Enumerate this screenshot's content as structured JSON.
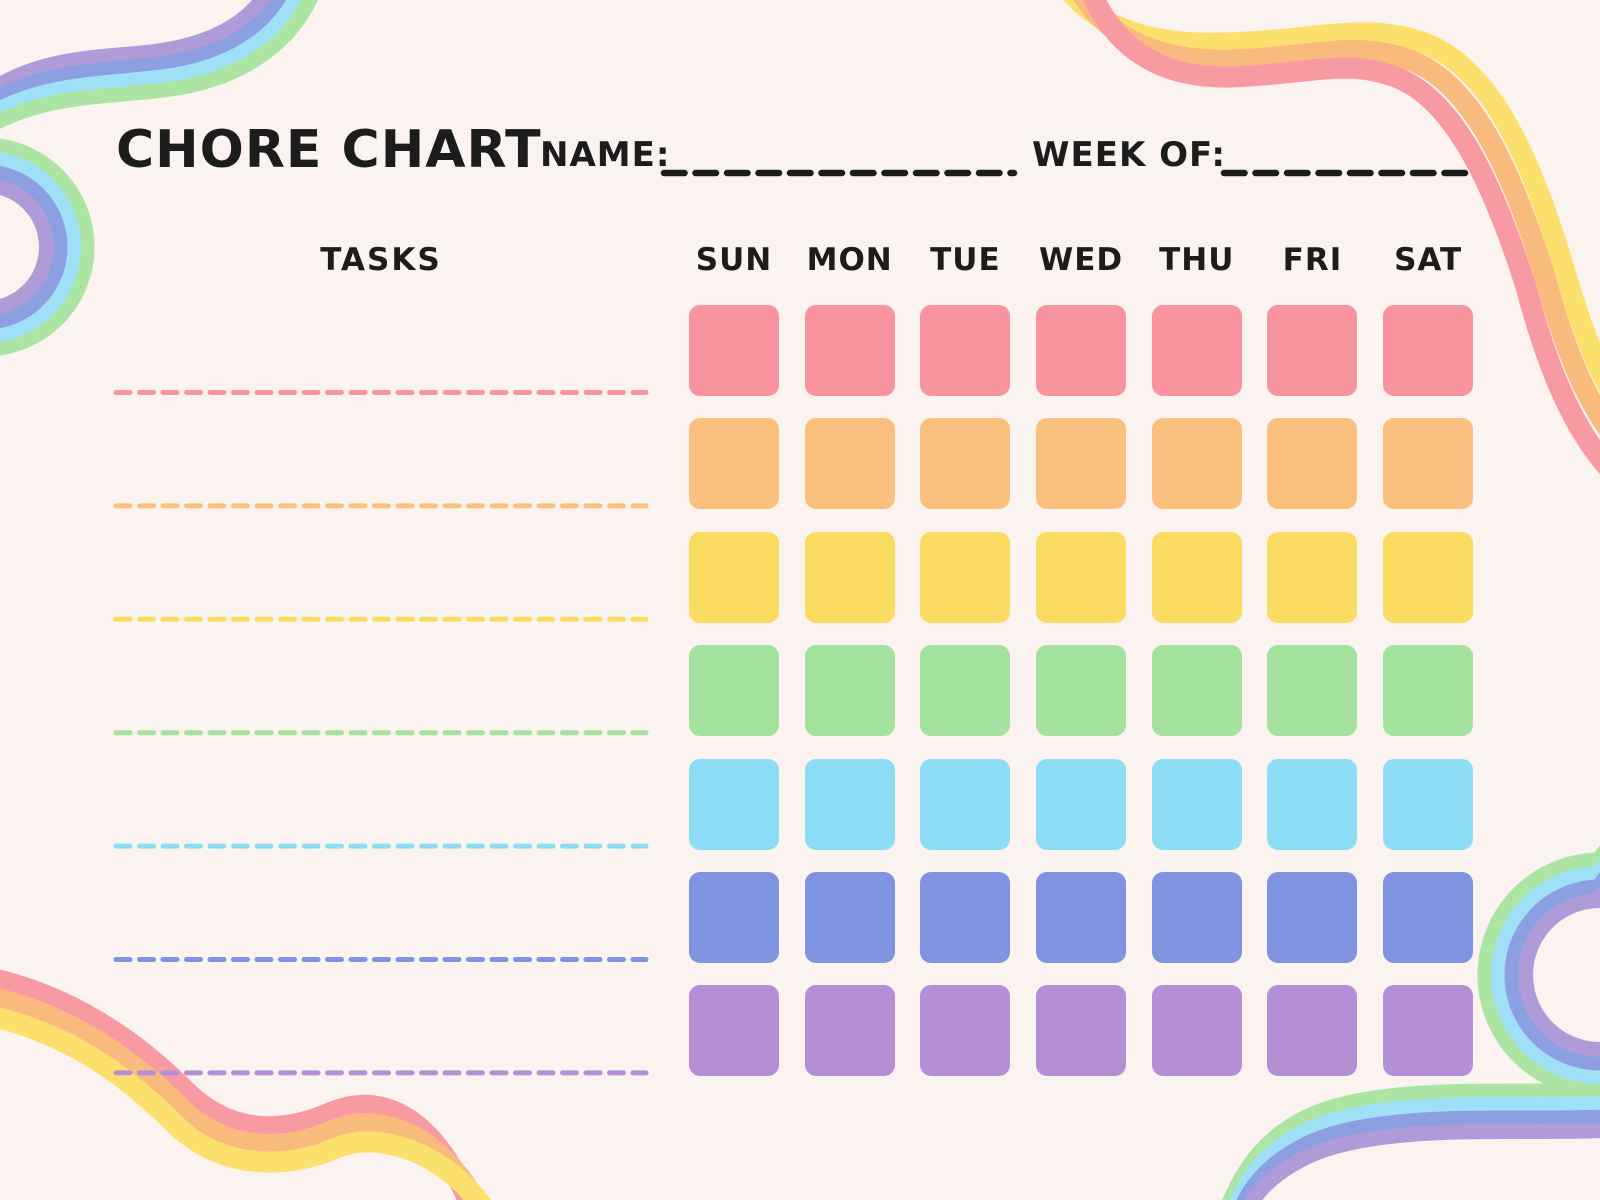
{
  "page": {
    "background": "#FAF3EF",
    "text_color": "#1C1C1C"
  },
  "header": {
    "title": "CHORE CHART",
    "name_label": "NAME:",
    "name_value": "",
    "week_of_label": "WEEK OF:",
    "week_of_value": ""
  },
  "table": {
    "tasks_label": "TASKS",
    "days": [
      "SUN",
      "MON",
      "TUE",
      "WED",
      "THU",
      "FRI",
      "SAT"
    ],
    "rows": [
      {
        "name": "row-1-red",
        "color": "#F7949E"
      },
      {
        "name": "row-2-orange",
        "color": "#F9C17D"
      },
      {
        "name": "row-3-yellow",
        "color": "#FBDC62"
      },
      {
        "name": "row-4-green",
        "color": "#A5E29F"
      },
      {
        "name": "row-5-sky-blue",
        "color": "#8DDDF7"
      },
      {
        "name": "row-6-periwinkle",
        "color": "#7F93E1"
      },
      {
        "name": "row-7-purple",
        "color": "#B48FD6"
      }
    ],
    "task_values": [
      "",
      "",
      "",
      "",
      "",
      "",
      ""
    ]
  },
  "decorations": {
    "cool_ribbon": {
      "purple": "#B09BD9",
      "blue": "#8C9FE3",
      "cyan": "#A0E0F7",
      "green": "#ACE5A3"
    },
    "warm_ribbon": {
      "yellow": "#FCE06E",
      "orange": "#F9BA7D",
      "pink": "#F89AA1"
    }
  }
}
